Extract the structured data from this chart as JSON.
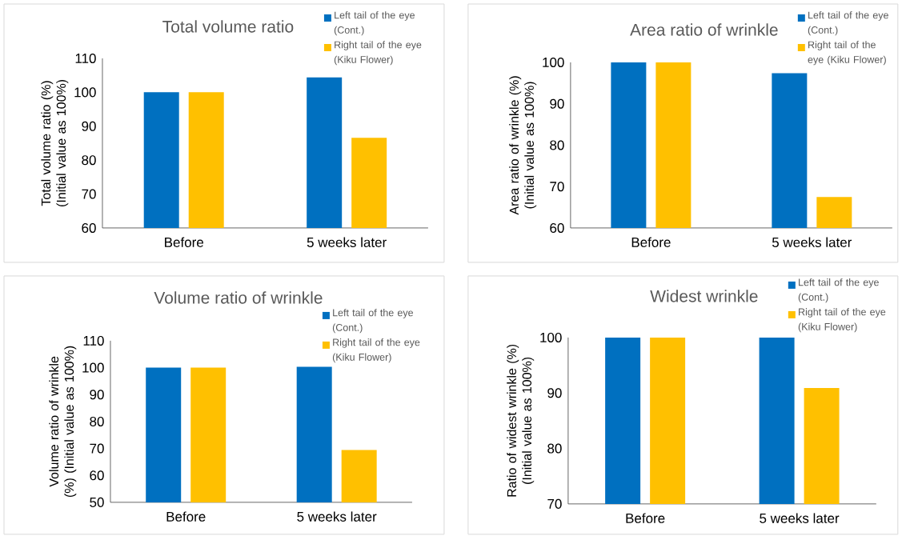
{
  "chart_data": [
    {
      "type": "bar",
      "title": "Total volume ratio",
      "ylabel": "Total volume ratio (%) (Initial value as 100%)",
      "categories": [
        "Before",
        "5 weeks later"
      ],
      "ylim": [
        60,
        110
      ],
      "yticks": [
        60,
        70,
        80,
        90,
        100,
        110
      ],
      "legend": "top right",
      "series": [
        {
          "name": "Left tail of the eye (Cont.)",
          "color": "#0070c0",
          "values": [
            100,
            104.4
          ]
        },
        {
          "name": "Right tail of the eye (Kiku Flower)",
          "color": "#ffc000",
          "values": [
            100,
            86.6
          ]
        }
      ]
    },
    {
      "type": "bar",
      "title": "Area ratio of wrinkle",
      "ylabel": "Area ratio of wrinkle (%) (Initial value as 100%)",
      "categories": [
        "Before",
        "5 weeks later"
      ],
      "ylim": [
        60,
        100
      ],
      "yticks": [
        60,
        70,
        80,
        90,
        100
      ],
      "legend": "top right",
      "series": [
        {
          "name": "Left tail of the eye (Cont.)",
          "color": "#0070c0",
          "values": [
            100,
            97.4
          ]
        },
        {
          "name": "Right tail of the eye (Kiku Flower)",
          "color": "#ffc000",
          "values": [
            100,
            67.5
          ]
        }
      ]
    },
    {
      "type": "bar",
      "title": "Volume ratio of wrinkle",
      "ylabel": "Volume ratio of wrinkle (%) (Initial value as 100%)",
      "categories": [
        "Before",
        "5 weeks later"
      ],
      "ylim": [
        50,
        110
      ],
      "yticks": [
        50,
        60,
        70,
        80,
        90,
        100,
        110
      ],
      "legend": "top right",
      "series": [
        {
          "name": "Left tail of the eye (Cont.)",
          "color": "#0070c0",
          "values": [
            100,
            100.3
          ]
        },
        {
          "name": "Right tail of the eye (Kiku Flower)",
          "color": "#ffc000",
          "values": [
            100,
            69.4
          ]
        }
      ]
    },
    {
      "type": "bar",
      "title": "Widest wrinkle",
      "ylabel": "Ratio of widest wrinkle (%) (Initial value as 100%)",
      "categories": [
        "Before",
        "5 weeks later"
      ],
      "ylim": [
        70,
        100
      ],
      "yticks": [
        70,
        80,
        90,
        100
      ],
      "legend": "top right",
      "series": [
        {
          "name": "Left tail of the eye (Cont.)",
          "color": "#0070c0",
          "values": [
            100,
            100
          ]
        },
        {
          "name": "Right tail of the eye (Kiku Flower)",
          "color": "#ffc000",
          "values": [
            100,
            90.9
          ]
        }
      ]
    }
  ]
}
